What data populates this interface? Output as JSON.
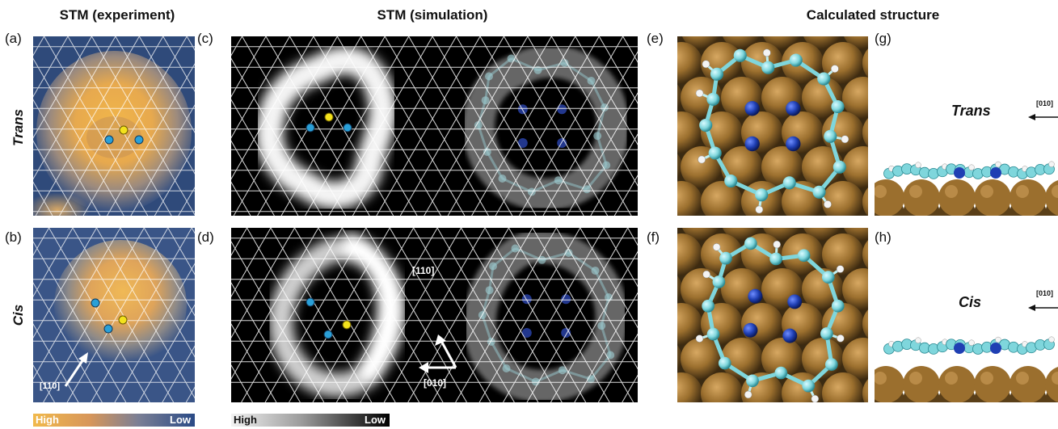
{
  "headers": {
    "experiment": "STM (experiment)",
    "simulation": "STM (simulation)",
    "structure": "Calculated structure"
  },
  "panels": {
    "a": "(a)",
    "b": "(b)",
    "c": "(c)",
    "d": "(d)",
    "e": "(e)",
    "f": "(f)",
    "g": "(g)",
    "h": "(h)"
  },
  "rows": {
    "trans": "Trans",
    "cis": "Cis"
  },
  "directions": {
    "b_arrow": "[110]",
    "d_up": "[110]",
    "d_left": "[010]",
    "g_arrow": "[010]",
    "h_arrow": "[010]"
  },
  "colorbars": {
    "experiment": {
      "high": "High",
      "low": "Low"
    },
    "simulation": {
      "high": "High",
      "low": "Low"
    }
  },
  "colors": {
    "n_dot": "#2aa0d8",
    "yellow_dot": "#f3e21c",
    "copper": "#9b6f2e",
    "carbon": "#7fd6dc",
    "nitrogen": "#1f3fb3"
  }
}
